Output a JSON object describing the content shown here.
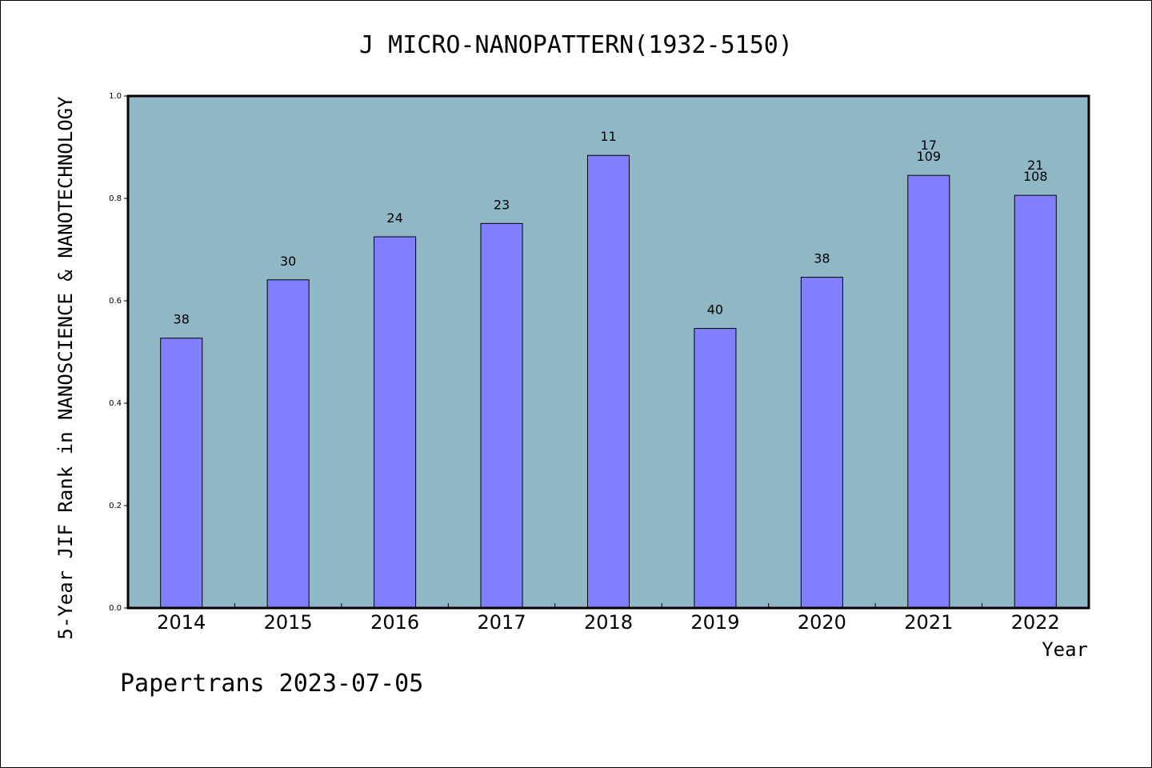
{
  "chart_data": {
    "type": "bar",
    "title": "J MICRO-NANOPATTERN(1932-5150)",
    "ylabel": "5-Year JIF Rank in NANOSCIENCE & NANOTECHNOLOGY",
    "xlabel": "Year",
    "ylim": [
      0,
      1.0
    ],
    "yticks": [
      "0.0",
      "0.2",
      "0.4",
      "0.6",
      "0.8",
      "1.0"
    ],
    "grid": false,
    "categories": [
      "2014",
      "2015",
      "2016",
      "2017",
      "2018",
      "2019",
      "2020",
      "2021",
      "2022"
    ],
    "values": [
      0.527,
      0.641,
      0.725,
      0.751,
      0.884,
      0.546,
      0.646,
      0.845,
      0.806
    ],
    "bar_labels": [
      [
        "38"
      ],
      [
        "30"
      ],
      [
        "24"
      ],
      [
        "23"
      ],
      [
        "11"
      ],
      [
        "40"
      ],
      [
        "38"
      ],
      [
        "17",
        "109"
      ],
      [
        "21",
        "108"
      ]
    ],
    "colors": {
      "plot_bg": "#8fb7c6",
      "bar": "#8080ff",
      "axis": "#000000"
    }
  },
  "footer": {
    "credit": "Papertrans 2023-07-05"
  }
}
